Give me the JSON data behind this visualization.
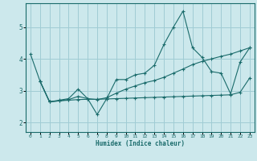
{
  "xlabel": "Humidex (Indice chaleur)",
  "bg_color": "#cce8ec",
  "grid_color": "#a0ccd4",
  "line_color": "#1a6b6b",
  "spine_color": "#1a6b6b",
  "xlim": [
    -0.5,
    23.5
  ],
  "ylim": [
    1.7,
    5.75
  ],
  "yticks": [
    2,
    3,
    4,
    5
  ],
  "xticks": [
    0,
    1,
    2,
    3,
    4,
    5,
    6,
    7,
    8,
    9,
    10,
    11,
    12,
    13,
    14,
    15,
    16,
    17,
    18,
    19,
    20,
    21,
    22,
    23
  ],
  "line1_x": [
    0,
    1,
    2,
    3,
    4,
    5,
    6,
    7,
    8,
    9,
    10,
    11,
    12,
    13,
    14,
    15,
    16,
    17,
    18,
    19,
    20,
    21,
    22,
    23
  ],
  "line1_y": [
    4.15,
    3.3,
    2.65,
    2.7,
    2.75,
    3.05,
    2.75,
    2.25,
    2.75,
    3.35,
    3.35,
    3.5,
    3.55,
    3.8,
    4.45,
    5.0,
    5.5,
    4.35,
    4.05,
    3.6,
    3.55,
    2.9,
    3.9,
    4.35
  ],
  "line2_x": [
    1,
    2,
    3,
    4,
    5,
    6,
    7,
    8,
    9,
    10,
    11,
    12,
    13,
    14,
    15,
    16,
    17,
    18,
    19,
    20,
    21,
    22,
    23
  ],
  "line2_y": [
    3.3,
    2.65,
    2.68,
    2.7,
    2.72,
    2.73,
    2.73,
    2.74,
    2.75,
    2.76,
    2.77,
    2.78,
    2.79,
    2.8,
    2.81,
    2.82,
    2.83,
    2.84,
    2.85,
    2.86,
    2.87,
    2.95,
    3.4
  ],
  "line3_x": [
    1,
    2,
    3,
    4,
    5,
    6,
    7,
    8,
    9,
    10,
    11,
    12,
    13,
    14,
    15,
    16,
    17,
    18,
    19,
    20,
    21,
    22,
    23
  ],
  "line3_y": [
    3.3,
    2.65,
    2.68,
    2.72,
    2.82,
    2.75,
    2.72,
    2.78,
    2.92,
    3.05,
    3.15,
    3.25,
    3.32,
    3.42,
    3.55,
    3.68,
    3.82,
    3.92,
    4.0,
    4.08,
    4.15,
    4.25,
    4.35
  ]
}
